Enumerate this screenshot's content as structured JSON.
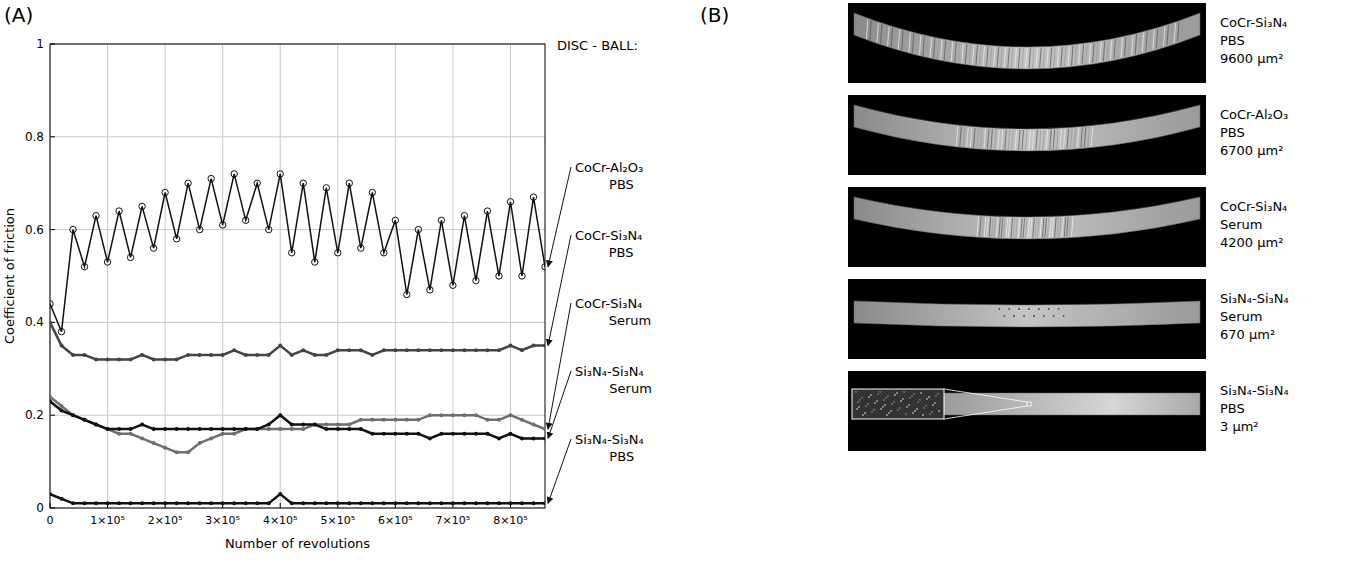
{
  "chart_data": {
    "type": "scatter",
    "panel_label": "(A)",
    "x_label": "Number of revolutions",
    "y_label": "Coefficient of friction",
    "legend_title": "DISC - BALL:",
    "legend": "right",
    "grid": true,
    "xlim": [
      0,
      860000
    ],
    "ylim": [
      0,
      1
    ],
    "xticks": [
      0,
      {
        "value": 100000,
        "label": "1×10⁵"
      },
      {
        "value": 200000,
        "label": "2×10⁵"
      },
      {
        "value": 300000,
        "label": "3×10⁵"
      },
      {
        "value": 400000,
        "label": "4×10⁵"
      },
      {
        "value": 500000,
        "label": "5×10⁵"
      },
      {
        "value": 600000,
        "label": "6×10⁵"
      },
      {
        "value": 700000,
        "label": "7×10⁵"
      },
      {
        "value": 800000,
        "label": "8×10⁵"
      }
    ],
    "yticks": [
      0,
      0.2,
      0.4,
      0.6,
      0.8,
      1
    ],
    "x": [
      0,
      20000,
      40000,
      60000,
      80000,
      100000,
      120000,
      140000,
      160000,
      180000,
      200000,
      220000,
      240000,
      260000,
      280000,
      300000,
      320000,
      340000,
      360000,
      380000,
      400000,
      420000,
      440000,
      460000,
      480000,
      500000,
      520000,
      540000,
      560000,
      580000,
      600000,
      620000,
      640000,
      660000,
      680000,
      700000,
      720000,
      740000,
      760000,
      780000,
      800000,
      820000,
      840000,
      860000
    ],
    "series": [
      {
        "name": "CoCr-Al₂O₃ PBS",
        "color": "#111111",
        "marker": "circle",
        "line_style": "solid",
        "values": [
          0.44,
          0.38,
          0.6,
          0.52,
          0.63,
          0.53,
          0.64,
          0.54,
          0.65,
          0.56,
          0.68,
          0.58,
          0.7,
          0.6,
          0.71,
          0.61,
          0.72,
          0.62,
          0.7,
          0.6,
          0.72,
          0.55,
          0.7,
          0.53,
          0.69,
          0.55,
          0.7,
          0.56,
          0.68,
          0.55,
          0.62,
          0.46,
          0.6,
          0.47,
          0.62,
          0.48,
          0.63,
          0.49,
          0.64,
          0.5,
          0.66,
          0.5,
          0.67,
          0.52
        ]
      },
      {
        "name": "CoCr-Si₃N₄ PBS",
        "color": "#444444",
        "marker": "circle",
        "line_style": "solid",
        "values": [
          0.4,
          0.35,
          0.33,
          0.33,
          0.32,
          0.32,
          0.32,
          0.32,
          0.33,
          0.32,
          0.32,
          0.32,
          0.33,
          0.33,
          0.33,
          0.33,
          0.34,
          0.33,
          0.33,
          0.33,
          0.35,
          0.33,
          0.34,
          0.33,
          0.33,
          0.34,
          0.34,
          0.34,
          0.33,
          0.34,
          0.34,
          0.34,
          0.34,
          0.34,
          0.34,
          0.34,
          0.34,
          0.34,
          0.34,
          0.34,
          0.35,
          0.34,
          0.35,
          0.35
        ]
      },
      {
        "name": "CoCr-Si₃N₄ Serum",
        "color": "#6e6e6e",
        "marker": "circle",
        "line_style": "solid",
        "values": [
          0.24,
          0.22,
          0.2,
          0.19,
          0.18,
          0.17,
          0.16,
          0.16,
          0.15,
          0.14,
          0.13,
          0.12,
          0.12,
          0.14,
          0.15,
          0.16,
          0.16,
          0.17,
          0.17,
          0.17,
          0.17,
          0.17,
          0.17,
          0.18,
          0.18,
          0.18,
          0.18,
          0.19,
          0.19,
          0.19,
          0.19,
          0.19,
          0.19,
          0.2,
          0.2,
          0.2,
          0.2,
          0.2,
          0.19,
          0.19,
          0.2,
          0.19,
          0.18,
          0.17
        ]
      },
      {
        "name": "Si₃N₄-Si₃N₄ Serum",
        "color": "#111111",
        "marker": "circle",
        "line_style": "solid",
        "values": [
          0.23,
          0.21,
          0.2,
          0.19,
          0.18,
          0.17,
          0.17,
          0.17,
          0.18,
          0.17,
          0.17,
          0.17,
          0.17,
          0.17,
          0.17,
          0.17,
          0.17,
          0.17,
          0.17,
          0.18,
          0.2,
          0.18,
          0.18,
          0.18,
          0.17,
          0.17,
          0.17,
          0.17,
          0.16,
          0.16,
          0.16,
          0.16,
          0.16,
          0.15,
          0.16,
          0.16,
          0.16,
          0.16,
          0.16,
          0.15,
          0.16,
          0.15,
          0.15,
          0.15
        ]
      },
      {
        "name": "Si₃N₄-Si₃N₄ PBS",
        "color": "#111111",
        "marker": "circle",
        "line_style": "solid",
        "values": [
          0.03,
          0.02,
          0.01,
          0.01,
          0.01,
          0.01,
          0.01,
          0.01,
          0.01,
          0.01,
          0.01,
          0.01,
          0.01,
          0.01,
          0.01,
          0.01,
          0.01,
          0.01,
          0.01,
          0.01,
          0.03,
          0.01,
          0.01,
          0.01,
          0.01,
          0.01,
          0.01,
          0.01,
          0.01,
          0.01,
          0.01,
          0.01,
          0.01,
          0.01,
          0.01,
          0.01,
          0.01,
          0.01,
          0.01,
          0.01,
          0.01,
          0.01,
          0.01,
          0.01
        ]
      }
    ]
  },
  "panel_b": {
    "panel_label": "(B)",
    "images": [
      {
        "pair": "CoCr-Si₃N₄",
        "medium": "PBS",
        "area": "9600 µm²"
      },
      {
        "pair": "CoCr-Al₂O₃",
        "medium": "PBS",
        "area": "6700 µm²"
      },
      {
        "pair": "CoCr-Si₃N₄",
        "medium": "Serum",
        "area": "4200 µm²"
      },
      {
        "pair": "Si₃N₄-Si₃N₄",
        "medium": "Serum",
        "area": "670 µm²"
      },
      {
        "pair": "Si₃N₄-Si₃N₄",
        "medium": "PBS",
        "area": "3 µm²"
      }
    ]
  }
}
